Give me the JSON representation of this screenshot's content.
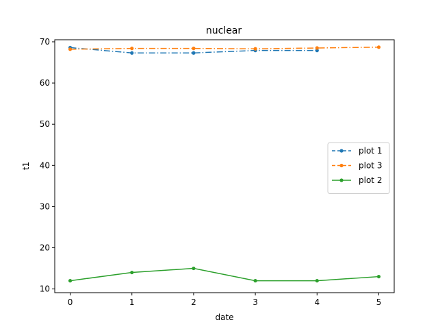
{
  "chart_data": {
    "type": "line",
    "title": "nuclear",
    "xlabel": "date",
    "ylabel": "t1",
    "xlim": [
      -0.25,
      5.25
    ],
    "ylim": [
      9.1,
      70.5
    ],
    "xticks": [
      0,
      1,
      2,
      3,
      4,
      5
    ],
    "yticks": [
      10,
      20,
      30,
      40,
      50,
      60,
      70
    ],
    "grid": false,
    "legend_position": "center-right",
    "series": [
      {
        "name": "plot 1",
        "x": [
          0,
          1,
          2,
          3,
          4
        ],
        "values": [
          68.6,
          67.3,
          67.3,
          67.9,
          67.9
        ],
        "color": "#1f77b4",
        "line_style": "dash-dot",
        "legend_line_style": "dashed",
        "marker": "dot"
      },
      {
        "name": "plot 3",
        "x": [
          0,
          1,
          2,
          3,
          4,
          5
        ],
        "values": [
          68.2,
          68.4,
          68.4,
          68.3,
          68.5,
          68.7
        ],
        "color": "#ff7f0e",
        "line_style": "dash-dot",
        "legend_line_style": "dashed",
        "marker": "dot"
      },
      {
        "name": "plot 2",
        "x": [
          0,
          1,
          2,
          3,
          4,
          5
        ],
        "values": [
          12,
          14,
          15,
          12,
          12,
          13
        ],
        "color": "#2ca02c",
        "line_style": "solid",
        "legend_line_style": "solid",
        "marker": "dot"
      }
    ]
  }
}
